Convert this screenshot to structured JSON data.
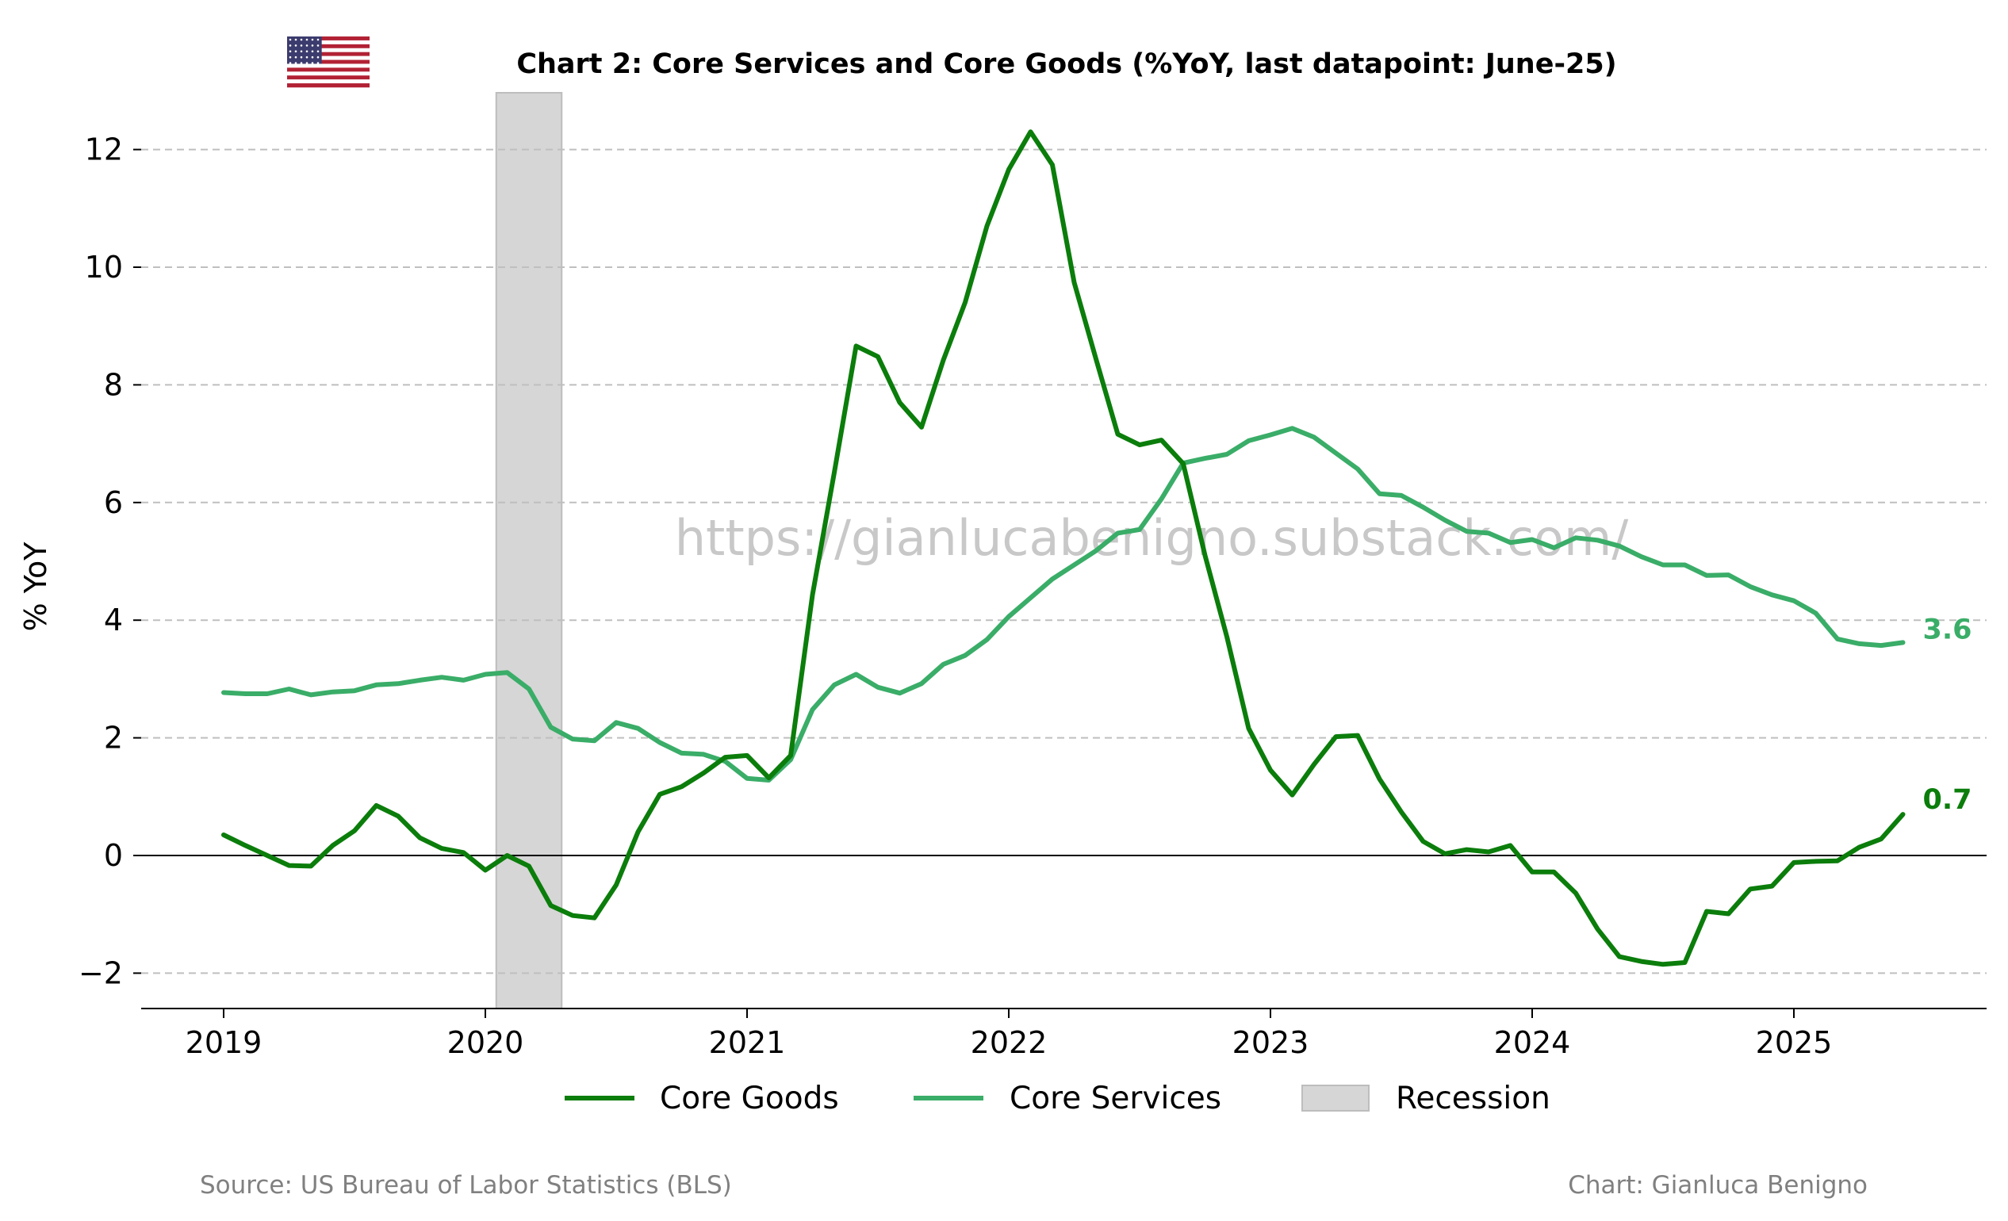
{
  "chart_data": {
    "type": "line",
    "title": "Chart 2: Core Services and Core Goods (%YoY, last datapoint: June-25)",
    "ylabel": "% YoY",
    "xlabel": "",
    "ylim": [
      -2.6,
      13.0
    ],
    "yticks": [
      -2,
      0,
      2,
      4,
      6,
      8,
      10,
      12
    ],
    "ytick_labels": [
      "−2",
      "0",
      "2",
      "4",
      "6",
      "8",
      "10",
      "12"
    ],
    "xlim": [
      "2018-09",
      "2025-12"
    ],
    "xticks": [
      "2019",
      "2020",
      "2021",
      "2022",
      "2023",
      "2024",
      "2025"
    ],
    "grid": "horizontal dashed",
    "legend_position": "bottom-center",
    "start_month": "2019-01",
    "series": [
      {
        "name": "Core Goods",
        "color": "#0b7d0b",
        "end_label": "0.7",
        "values": [
          0.35,
          0.17,
          0.0,
          -0.17,
          -0.18,
          0.17,
          0.42,
          0.85,
          0.67,
          0.3,
          0.12,
          0.05,
          -0.25,
          0.0,
          -0.18,
          -0.85,
          -1.02,
          -1.06,
          -0.5,
          0.4,
          1.04,
          1.17,
          1.4,
          1.67,
          1.7,
          1.32,
          1.7,
          4.43,
          6.51,
          8.66,
          8.48,
          7.7,
          7.28,
          8.42,
          9.4,
          10.7,
          11.66,
          12.3,
          11.74,
          9.74,
          8.44,
          7.16,
          6.98,
          7.06,
          6.66,
          5.1,
          3.72,
          2.16,
          1.45,
          1.03,
          1.55,
          2.02,
          2.04,
          1.3,
          0.74,
          0.24,
          0.03,
          0.1,
          0.06,
          0.17,
          -0.28,
          -0.28,
          -0.64,
          -1.25,
          -1.72,
          -1.8,
          -1.85,
          -1.82,
          -0.95,
          -0.99,
          -0.57,
          -0.52,
          -0.12,
          -0.1,
          -0.09,
          0.14,
          0.28,
          0.7
        ]
      },
      {
        "name": "Core Services",
        "color": "#3aad68",
        "end_label": "3.6",
        "values": [
          2.77,
          2.75,
          2.75,
          2.83,
          2.73,
          2.78,
          2.8,
          2.9,
          2.92,
          2.98,
          3.03,
          2.98,
          3.08,
          3.11,
          2.83,
          2.18,
          1.98,
          1.95,
          2.26,
          2.16,
          1.92,
          1.74,
          1.72,
          1.6,
          1.31,
          1.28,
          1.63,
          2.48,
          2.9,
          3.08,
          2.86,
          2.76,
          2.92,
          3.25,
          3.4,
          3.67,
          4.06,
          4.38,
          4.7,
          4.94,
          5.18,
          5.48,
          5.54,
          6.06,
          6.67,
          6.75,
          6.82,
          7.05,
          7.15,
          7.26,
          7.11,
          6.84,
          6.57,
          6.15,
          6.12,
          5.92,
          5.7,
          5.51,
          5.48,
          5.32,
          5.37,
          5.23,
          5.4,
          5.36,
          5.26,
          5.08,
          4.94,
          4.94,
          4.76,
          4.77,
          4.57,
          4.43,
          4.33,
          4.12,
          3.68,
          3.6,
          3.57,
          3.62
        ]
      },
      {
        "name": "Recession",
        "color": "#d6d6d6",
        "type": "shaded-span",
        "start": "2020-02",
        "end": "2020-04"
      }
    ]
  },
  "legend": {
    "items": [
      "Core Goods",
      "Core Services",
      "Recession"
    ]
  },
  "footer": {
    "source": "Source: US Bureau of Labor Statistics (BLS)",
    "credit": "Chart: Gianluca Benigno"
  },
  "watermark": "https://gianlucabenigno.substack.com/",
  "flag": "us-flag-icon"
}
